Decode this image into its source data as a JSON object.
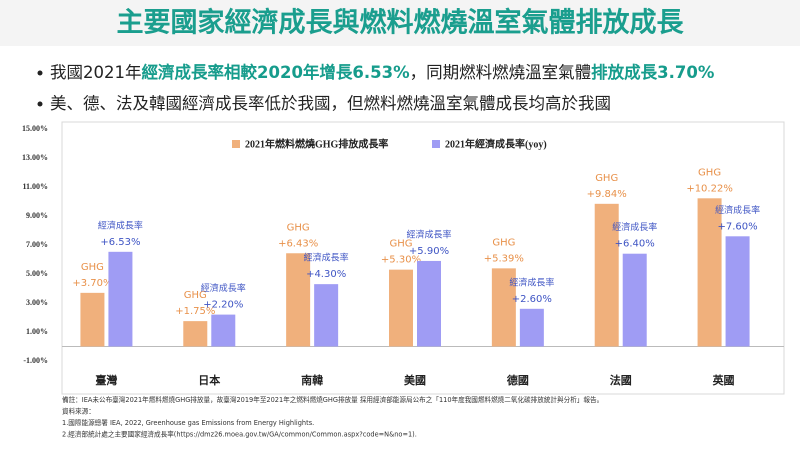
{
  "slide": {
    "title": "主要國家經濟成長與燃料燃燒溫室氣體排放成長",
    "bullets": [
      [
        {
          "text": "我國2021年",
          "color": "#222222"
        },
        {
          "text": "經濟成長率相較2020年增長6.53%",
          "color": "#169c8c"
        },
        {
          "text": "，同期燃料燃燒溫室氣體",
          "color": "#222222"
        },
        {
          "text": "排放成長3.70%",
          "color": "#169c8c"
        }
      ],
      [
        {
          "text": "美、德、法及韓國經濟成長率低於我國，但燃料燃燒溫室氣體成長均高於我國",
          "color": "#222222"
        }
      ]
    ],
    "notes": [
      "備註：IEA未公布臺灣2021年燃料燃燒GHG排放量，故臺灣2019年至2021年之燃料燃燒GHG排放量 採用經濟部能源局公布之「110年度我國燃料燃燒二氧化碳排放統計與分析」報告。",
      "資料來源：",
      "1.國際能源總署 IEA, 2022, Greenhouse gas Emissions from Energy Highlights.",
      "2.經濟部統計處之主要國家經濟成長率(https://dmz26.moea.gov.tw/GA/common/Common.aspx?code=N&no=1)."
    ]
  },
  "chart_data": {
    "type": "bar",
    "categories": [
      "臺灣",
      "日本",
      "南韓",
      "美國",
      "德國",
      "法國",
      "英國"
    ],
    "series": [
      {
        "name": "2021年燃料燃燒GHG排放成長率",
        "color": "#f0b07c",
        "label_color": "#e8914a",
        "annotation": "GHG",
        "values": [
          3.7,
          1.75,
          6.43,
          5.3,
          5.39,
          9.84,
          10.22
        ],
        "value_labels": [
          "+3.70%",
          "+1.75%",
          "+6.43%",
          "+5.30%",
          "+5.39%",
          "+9.84%",
          "+10.22%"
        ]
      },
      {
        "name": "2021年經濟成長率(yoy)",
        "color": "#9f9cf4",
        "label_color": "#3f55c4",
        "annotation": "經濟成長率",
        "values": [
          6.53,
          2.2,
          4.3,
          5.9,
          2.6,
          6.4,
          7.6
        ],
        "value_labels": [
          "+6.53%",
          "+2.20%",
          "+4.30%",
          "+5.90%",
          "+2.60%",
          "+6.40%",
          "+7.60%"
        ]
      }
    ],
    "ylim": [
      -1,
      15
    ],
    "yticks": [
      {
        "value": -1,
        "label": "-1.00%"
      },
      {
        "value": 1,
        "label": "1.00%"
      },
      {
        "value": 3,
        "label": "3.00%"
      },
      {
        "value": 5,
        "label": "5.00%"
      },
      {
        "value": 7,
        "label": "7.00%"
      },
      {
        "value": 9,
        "label": "9.00%"
      },
      {
        "value": 11,
        "label": "11.00%"
      },
      {
        "value": 13,
        "label": "13.00%"
      },
      {
        "value": 15,
        "label": "15.00%"
      }
    ],
    "grid": false,
    "legend": "top"
  }
}
